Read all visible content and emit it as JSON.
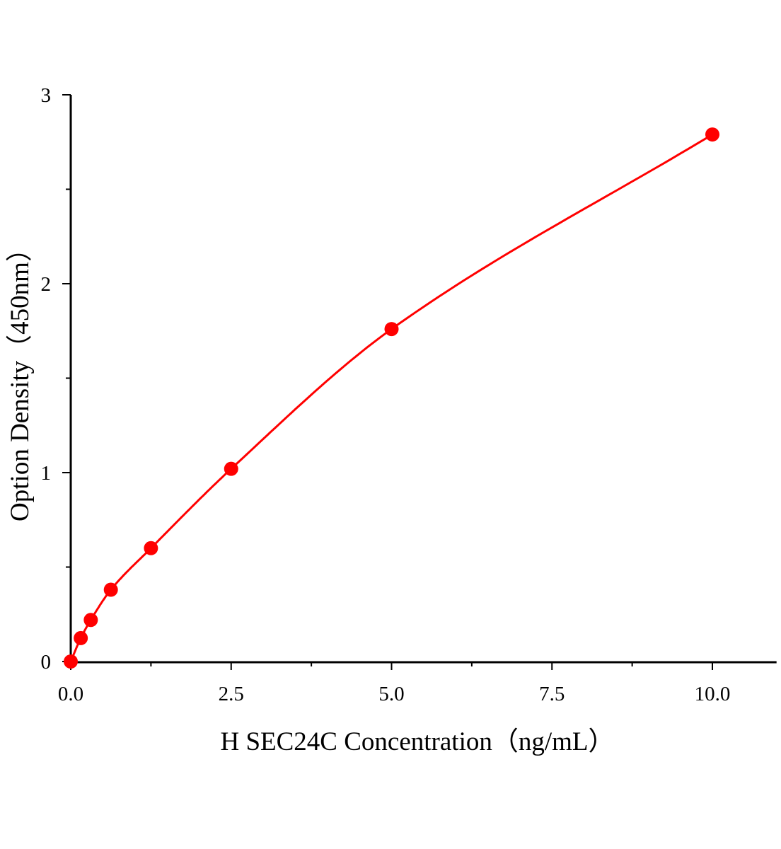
{
  "chart_data": {
    "type": "scatter",
    "title": "",
    "xlabel": "H SEC24C Concentration（ng/mL）",
    "ylabel": "Option Density（450nm）",
    "xlim": [
      0,
      11
    ],
    "ylim": [
      0,
      3
    ],
    "x_ticks": [
      "0.0",
      "2.5",
      "5.0",
      "7.5",
      "10.0"
    ],
    "x_tick_values": [
      0,
      2.5,
      5,
      7.5,
      10
    ],
    "y_ticks": [
      "0",
      "1",
      "2",
      "3"
    ],
    "y_tick_values": [
      0,
      1,
      2,
      3
    ],
    "grid": false,
    "series": [
      {
        "x": [
          0,
          0.156,
          0.3125,
          0.625,
          1.25,
          2.5,
          5,
          10
        ],
        "y": [
          0,
          0.124,
          0.22,
          0.38,
          0.6,
          1.02,
          1.76,
          2.79
        ],
        "color": "#ff0000",
        "marker": "circle",
        "fit_line": true
      }
    ]
  }
}
